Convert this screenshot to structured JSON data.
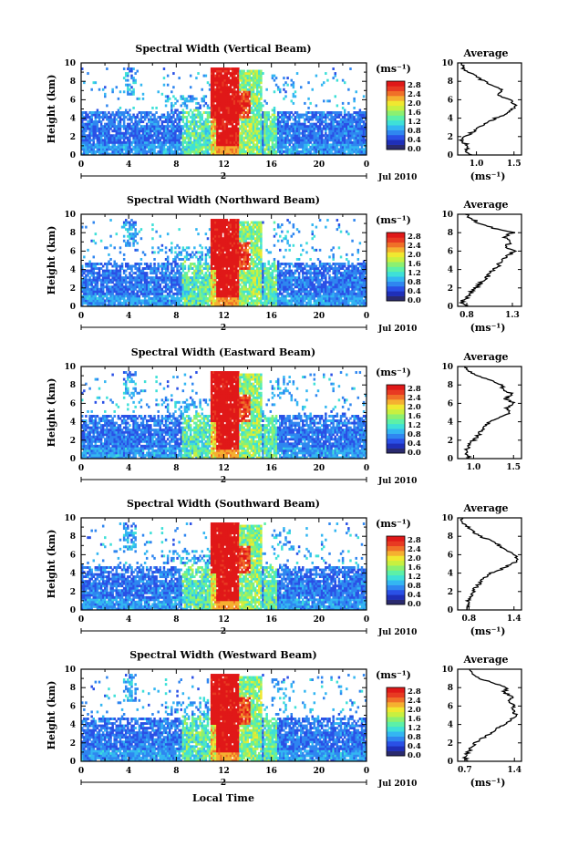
{
  "figure": {
    "xlabel": "Local Time",
    "ylabel": "Height (km)",
    "unit_label": "(ms⁻¹)",
    "avg_title": "Average",
    "date_label": "Jul 2010",
    "day_label": "2",
    "xticks": [
      "0",
      "4",
      "8",
      "12",
      "16",
      "20",
      "0"
    ],
    "yticks": [
      "0",
      "2",
      "4",
      "6",
      "8",
      "10"
    ],
    "colorbar_ticks": [
      "0.0",
      "0.4",
      "0.8",
      "1.2",
      "1.6",
      "2.0",
      "2.4",
      "2.8"
    ],
    "colorbar_colors": [
      "#2a2a6e",
      "#1f2fb8",
      "#2a50e6",
      "#2f86f0",
      "#33b6f2",
      "#3ee0d8",
      "#5cf0a8",
      "#8cf070",
      "#c8f040",
      "#f0e830",
      "#f5b030",
      "#f07028",
      "#e83a22",
      "#e01818"
    ]
  },
  "chart_data": [
    {
      "type": "heatmap",
      "title": "Spectral Width (Vertical Beam)",
      "xlim": [
        0,
        24
      ],
      "ylim": [
        0,
        10
      ],
      "clim": [
        0.0,
        3.0
      ],
      "xlabel": "",
      "ylabel": "Height (km)",
      "avg_profile": {
        "title": "Average",
        "xticks": [
          "1.0",
          "1.5"
        ],
        "xlim": [
          0.75,
          1.6
        ],
        "xlabel": "(ms⁻¹)",
        "heights": [
          0.0,
          0.5,
          1.0,
          1.5,
          2.0,
          2.5,
          3.0,
          3.5,
          4.0,
          4.5,
          5.0,
          5.5,
          6.0,
          6.5,
          7.0,
          7.5,
          8.0,
          8.5,
          9.0,
          9.5,
          10.0
        ],
        "values": [
          0.95,
          0.85,
          0.9,
          0.8,
          0.85,
          0.95,
          1.05,
          1.15,
          1.25,
          1.4,
          1.48,
          1.52,
          1.45,
          1.3,
          1.35,
          1.22,
          1.1,
          1.0,
          0.9,
          0.82,
          0.8
        ]
      }
    },
    {
      "type": "heatmap",
      "title": "Spectral Width (Northward Beam)",
      "xlim": [
        0,
        24
      ],
      "ylim": [
        0,
        10
      ],
      "clim": [
        0.0,
        3.0
      ],
      "xlabel": "",
      "ylabel": "Height (km)",
      "avg_profile": {
        "title": "Average",
        "xticks": [
          "0.8",
          "1.3"
        ],
        "xlim": [
          0.7,
          1.4
        ],
        "xlabel": "(ms⁻¹)",
        "heights": [
          0.0,
          0.5,
          1.0,
          1.5,
          2.0,
          2.5,
          3.0,
          3.5,
          4.0,
          4.5,
          5.0,
          5.5,
          6.0,
          6.5,
          7.0,
          7.5,
          8.0,
          8.5,
          9.0,
          9.5,
          10.0
        ],
        "values": [
          0.8,
          0.75,
          0.8,
          0.85,
          0.9,
          0.95,
          1.0,
          1.05,
          1.1,
          1.15,
          1.2,
          1.25,
          1.32,
          1.22,
          1.28,
          1.2,
          1.3,
          1.1,
          0.95,
          0.85,
          0.8
        ]
      }
    },
    {
      "type": "heatmap",
      "title": "Spectral Width (Eastward Beam)",
      "xlim": [
        0,
        24
      ],
      "ylim": [
        0,
        10
      ],
      "clim": [
        0.0,
        3.0
      ],
      "xlabel": "",
      "ylabel": "Height (km)",
      "avg_profile": {
        "title": "Average",
        "xticks": [
          "1.0",
          "1.5"
        ],
        "xlim": [
          0.8,
          1.6
        ],
        "xlabel": "",
        "heights": [
          0.0,
          0.5,
          1.0,
          1.5,
          2.0,
          2.5,
          3.0,
          3.5,
          4.0,
          4.5,
          5.0,
          5.5,
          6.0,
          6.5,
          7.0,
          7.5,
          8.0,
          8.5,
          9.0,
          9.5,
          10.0
        ],
        "values": [
          0.95,
          0.9,
          0.92,
          0.95,
          1.0,
          1.05,
          1.1,
          1.15,
          1.2,
          1.35,
          1.45,
          1.42,
          1.5,
          1.4,
          1.48,
          1.38,
          1.35,
          1.2,
          1.05,
          0.95,
          0.9
        ]
      }
    },
    {
      "type": "heatmap",
      "title": "Spectral Width (Southward Beam)",
      "xlim": [
        0,
        24
      ],
      "ylim": [
        0,
        10
      ],
      "clim": [
        0.0,
        3.0
      ],
      "xlabel": "",
      "ylabel": "Height (km)",
      "avg_profile": {
        "title": "Average",
        "xticks": [
          "0.8",
          "1.4"
        ],
        "xlim": [
          0.65,
          1.5
        ],
        "xlabel": "(ms⁻¹)",
        "heights": [
          0.0,
          0.5,
          1.0,
          1.5,
          2.0,
          2.5,
          3.0,
          3.5,
          4.0,
          4.5,
          5.0,
          5.5,
          6.0,
          6.5,
          7.0,
          7.5,
          8.0,
          8.5,
          9.0,
          9.5,
          10.0
        ],
        "values": [
          0.75,
          0.8,
          0.78,
          0.82,
          0.85,
          0.9,
          0.95,
          1.0,
          1.1,
          1.25,
          1.38,
          1.45,
          1.4,
          1.3,
          1.2,
          1.1,
          0.95,
          0.85,
          0.78,
          0.72,
          0.7
        ]
      }
    },
    {
      "type": "heatmap",
      "title": "Spectral Width (Westward Beam)",
      "xlim": [
        0,
        24
      ],
      "ylim": [
        0,
        10
      ],
      "clim": [
        0.0,
        3.0
      ],
      "xlabel": "Local Time",
      "ylabel": "Height (km)",
      "avg_profile": {
        "title": "Average",
        "xticks": [
          "0.7",
          "1.4"
        ],
        "xlim": [
          0.6,
          1.5
        ],
        "xlabel": "(ms⁻¹)",
        "heights": [
          0.0,
          0.5,
          1.0,
          1.5,
          2.0,
          2.5,
          3.0,
          3.5,
          4.0,
          4.5,
          5.0,
          5.5,
          6.0,
          6.5,
          7.0,
          7.5,
          8.0,
          8.5,
          9.0,
          9.5,
          10.0
        ],
        "values": [
          0.75,
          0.7,
          0.75,
          0.8,
          0.85,
          0.95,
          1.05,
          1.15,
          1.25,
          1.35,
          1.42,
          1.38,
          1.4,
          1.32,
          1.38,
          1.25,
          1.3,
          1.1,
          0.9,
          0.8,
          0.75
        ]
      }
    }
  ]
}
